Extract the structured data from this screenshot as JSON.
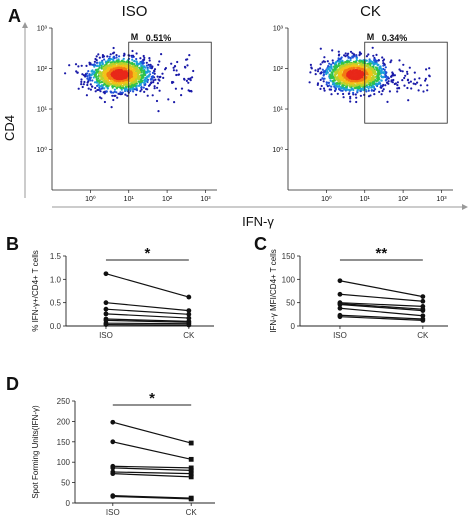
{
  "panel_a": {
    "letter": "A",
    "y_axis_label": "CD4",
    "x_axis_label": "IFN-γ",
    "tick_labels": [
      "10⁰",
      "10¹",
      "10²",
      "10³"
    ],
    "plots": [
      {
        "title": "ISO",
        "gate_label": "M",
        "gate_value": "0.51%"
      },
      {
        "title": "CK",
        "gate_label": "M",
        "gate_value": "0.34%"
      }
    ]
  },
  "chart_data": [
    {
      "type": "line",
      "panel": "B",
      "ylabel": "% IFN-γ+/CD4+ T cells",
      "categories": [
        "ISO",
        "CK"
      ],
      "ylim": [
        0,
        1.5
      ],
      "yticks": [
        "0.0",
        "0.5",
        "1.0",
        "1.5"
      ],
      "annotation": "*",
      "series": [
        {
          "values": [
            1.12,
            0.62
          ]
        },
        {
          "values": [
            0.5,
            0.33
          ]
        },
        {
          "values": [
            0.36,
            0.25
          ]
        },
        {
          "values": [
            0.26,
            0.17
          ]
        },
        {
          "values": [
            0.15,
            0.1
          ]
        },
        {
          "values": [
            0.12,
            0.08
          ]
        },
        {
          "values": [
            0.06,
            0.05
          ]
        },
        {
          "values": [
            0.03,
            0.02
          ]
        }
      ]
    },
    {
      "type": "line",
      "panel": "C",
      "ylabel": "IFN-γ MFI/CD4+ T cells",
      "categories": [
        "ISO",
        "CK"
      ],
      "ylim": [
        0,
        150
      ],
      "yticks": [
        "0",
        "50",
        "100",
        "150"
      ],
      "annotation": "**",
      "series": [
        {
          "values": [
            97,
            63
          ]
        },
        {
          "values": [
            68,
            53
          ]
        },
        {
          "values": [
            50,
            42
          ]
        },
        {
          "values": [
            48,
            36
          ]
        },
        {
          "values": [
            46,
            33
          ]
        },
        {
          "values": [
            38,
            22
          ]
        },
        {
          "values": [
            23,
            15
          ]
        },
        {
          "values": [
            20,
            12
          ]
        }
      ]
    },
    {
      "type": "line",
      "panel": "D",
      "ylabel": "Spot Forming Units(IFN-γ)",
      "categories": [
        "ISO",
        "CK"
      ],
      "ylim": [
        0,
        250
      ],
      "yticks": [
        "0",
        "50",
        "100",
        "150",
        "200",
        "250"
      ],
      "annotation": "*",
      "series": [
        {
          "values": [
            198,
            147
          ]
        },
        {
          "values": [
            150,
            107
          ]
        },
        {
          "values": [
            90,
            86
          ]
        },
        {
          "values": [
            86,
            80
          ]
        },
        {
          "values": [
            76,
            72
          ]
        },
        {
          "values": [
            72,
            64
          ]
        },
        {
          "values": [
            18,
            12
          ]
        },
        {
          "values": [
            16,
            10
          ]
        }
      ]
    }
  ]
}
